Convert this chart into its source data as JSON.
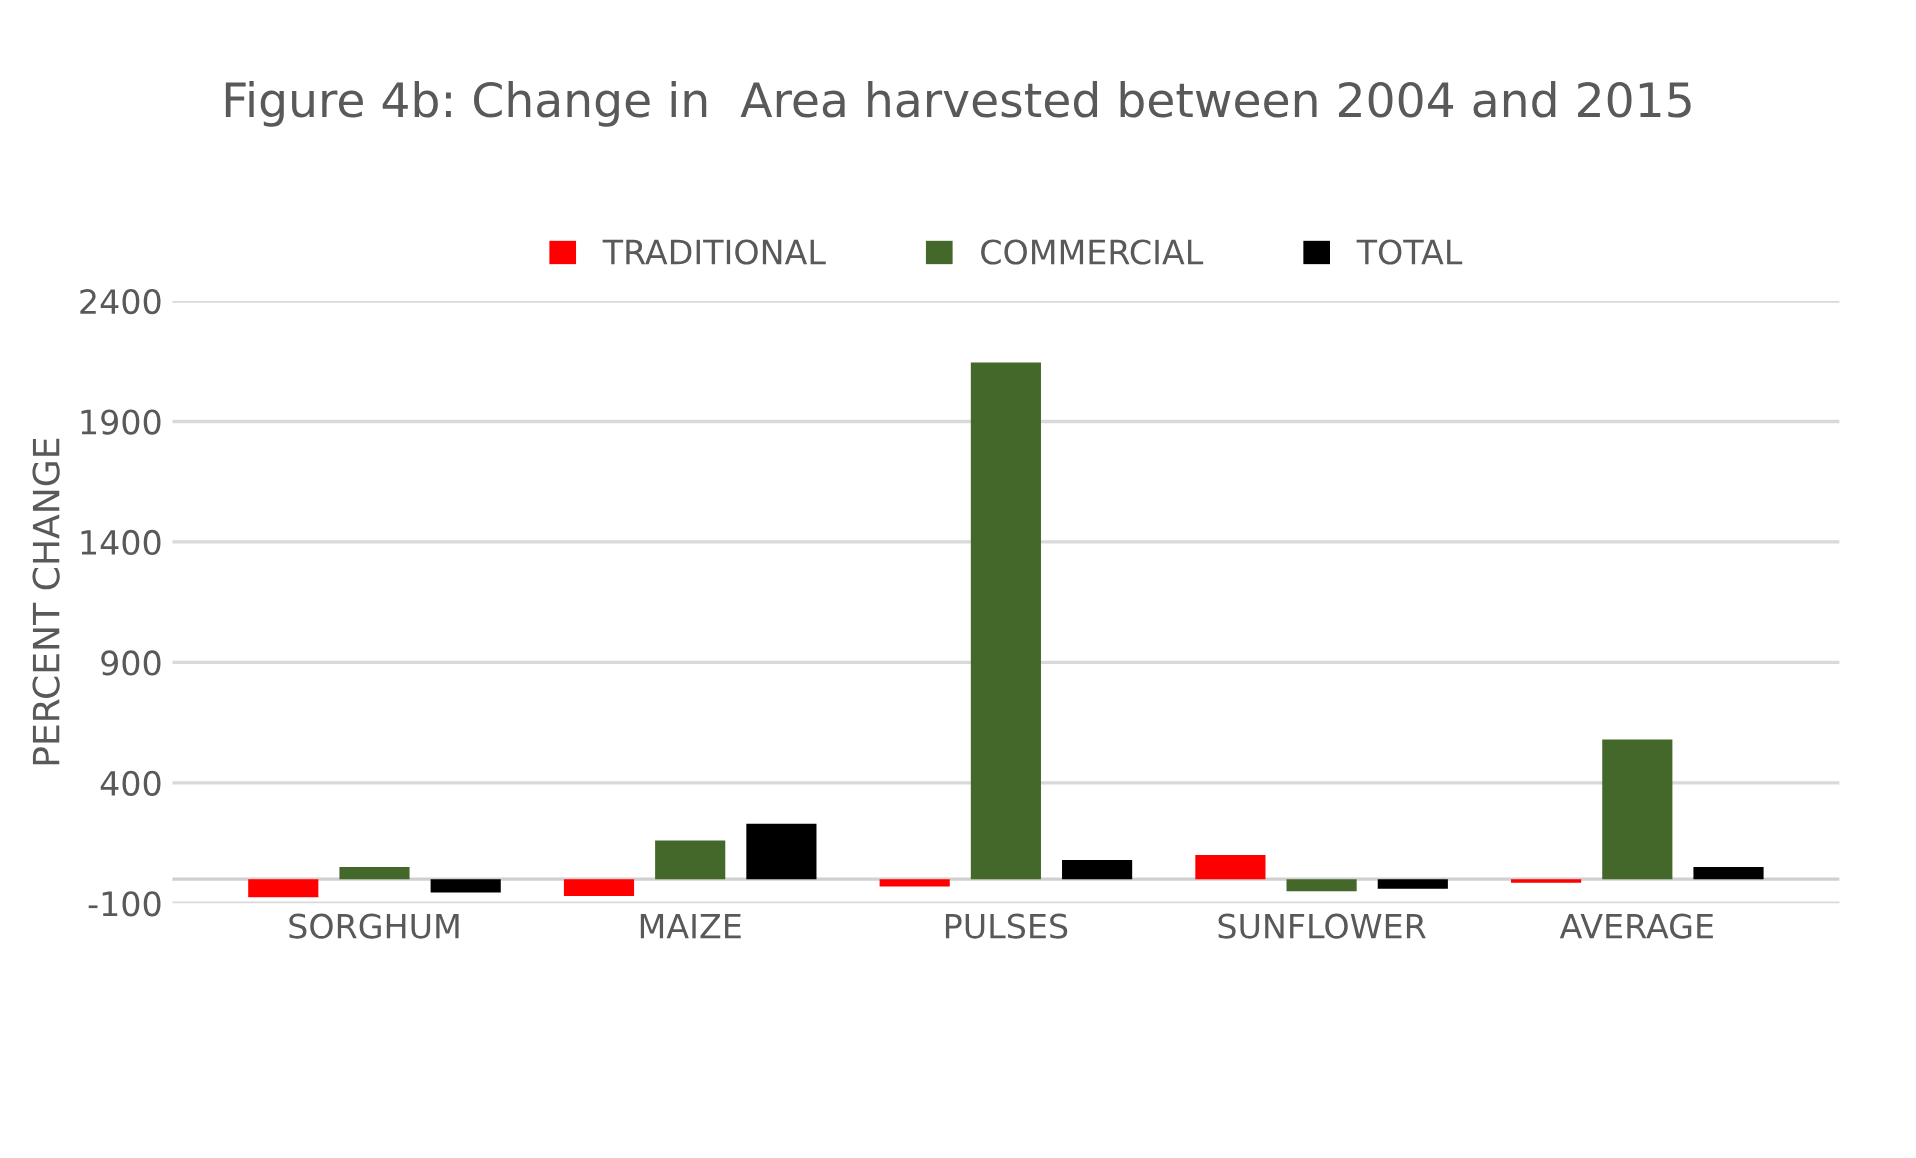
{
  "chart_data": {
    "type": "bar",
    "title": "Figure 4b: Change in  Area harvested between 2004 and 2015",
    "ylabel": "PERCENT CHANGE",
    "categories": [
      "SORGHUM",
      "MAIZE",
      "PULSES",
      "SUNFLOWER",
      "AVERAGE"
    ],
    "series": [
      {
        "name": "TRADITIONAL",
        "color": "#ff0000",
        "values": [
          -75,
          -70,
          -30,
          100,
          -15
        ]
      },
      {
        "name": "COMMERCIAL",
        "color": "#44682a",
        "values": [
          50,
          160,
          2145,
          -50,
          580
        ]
      },
      {
        "name": "TOTAL",
        "color": "#000000",
        "values": [
          -55,
          230,
          80,
          -40,
          50
        ]
      }
    ],
    "ylim": [
      -100,
      2400
    ],
    "yticks": [
      -100,
      400,
      900,
      1400,
      1900,
      2400
    ],
    "grid": "y",
    "legend": "top"
  }
}
